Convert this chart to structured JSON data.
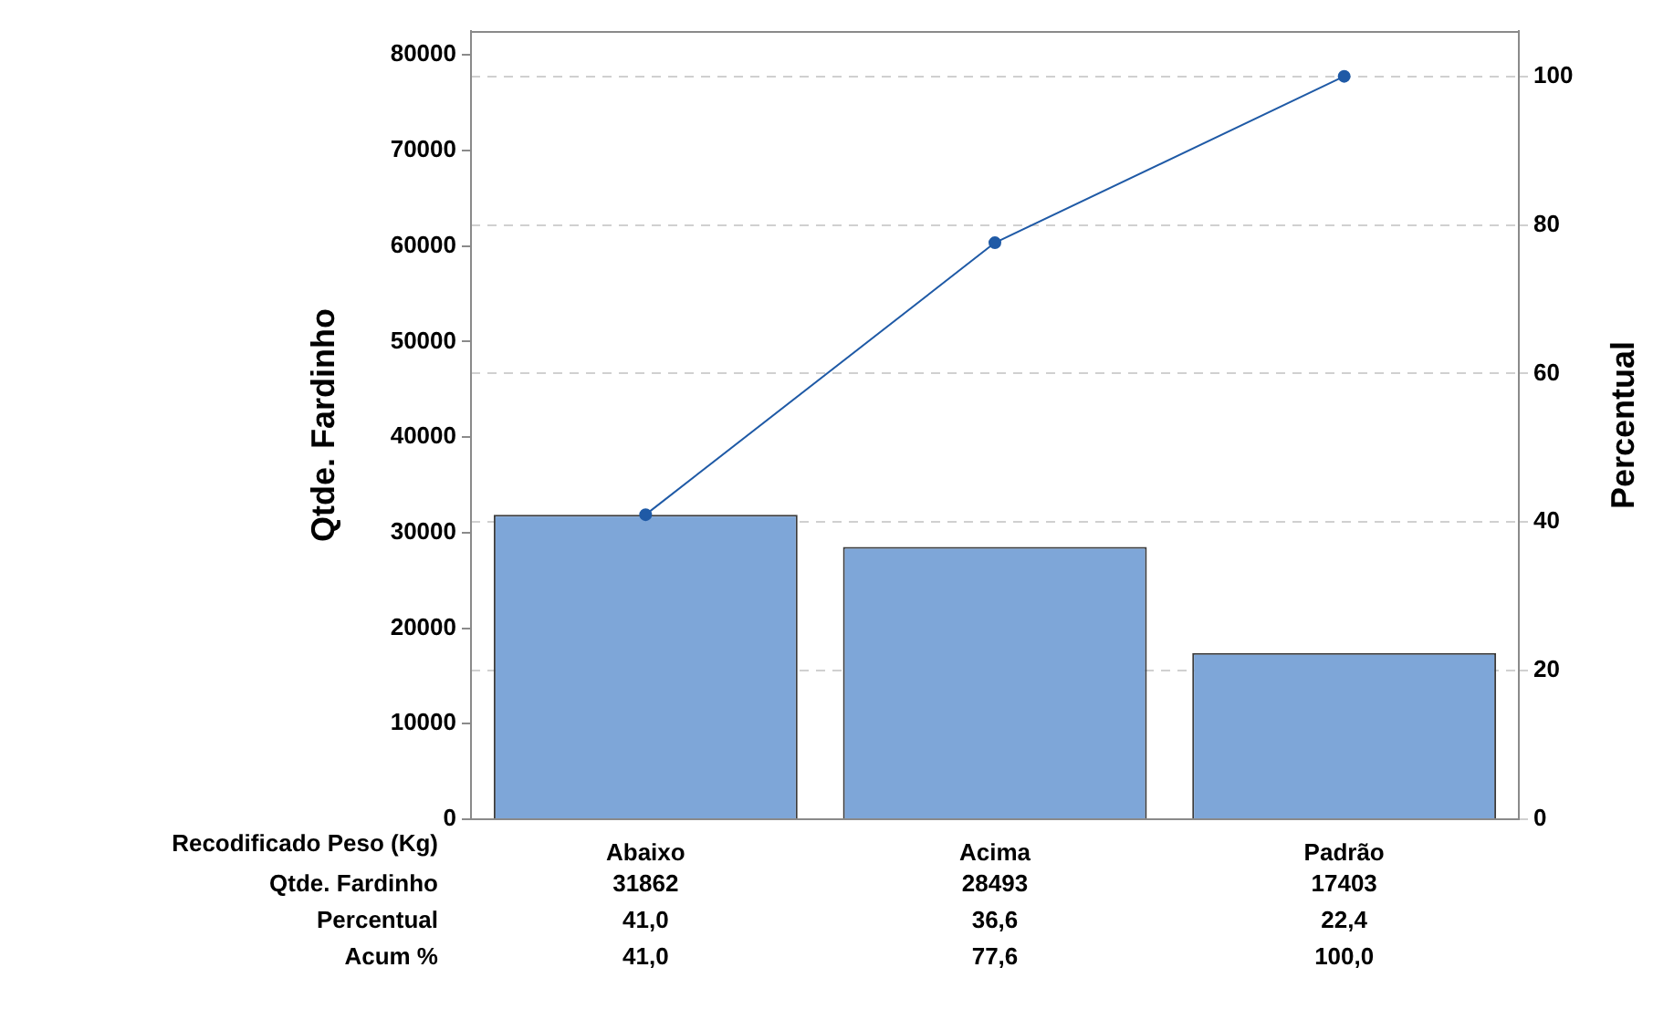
{
  "chart_data": {
    "type": "bar",
    "xlabel": "Recodificado Peso (Kg)",
    "ylabel": "Qtde. Fardinho",
    "y2label": "Percentual",
    "categories": [
      "Abaixo",
      "Acima",
      "Padrão"
    ],
    "series": [
      {
        "color": "#7ea6d8",
        "values": [
          31862,
          28493,
          17403
        ],
        "value_labels": [
          "31862",
          "28493",
          "17403"
        ]
      },
      {
        "type": "line",
        "axis": "y2",
        "color": "#1f5aa6",
        "values": [
          41.0,
          77.6,
          100.0
        ],
        "value_labels": [
          "41,0",
          "77,6",
          "100,0"
        ]
      }
    ],
    "annotations": [
      "Qtde. Fardinho",
      "Percentual",
      "41,0",
      "36,6",
      "22,4",
      "Acum %"
    ],
    "ylim": [
      0,
      82500
    ],
    "yticks": [
      0,
      10000,
      20000,
      30000,
      40000,
      50000,
      60000,
      70000,
      80000
    ],
    "y2lim": [
      0,
      106.1
    ],
    "y2ticks": [
      0,
      20,
      40,
      60,
      80,
      100
    ],
    "grid": true,
    "legend": false,
    "marker": "circle",
    "line_style": "solid"
  }
}
